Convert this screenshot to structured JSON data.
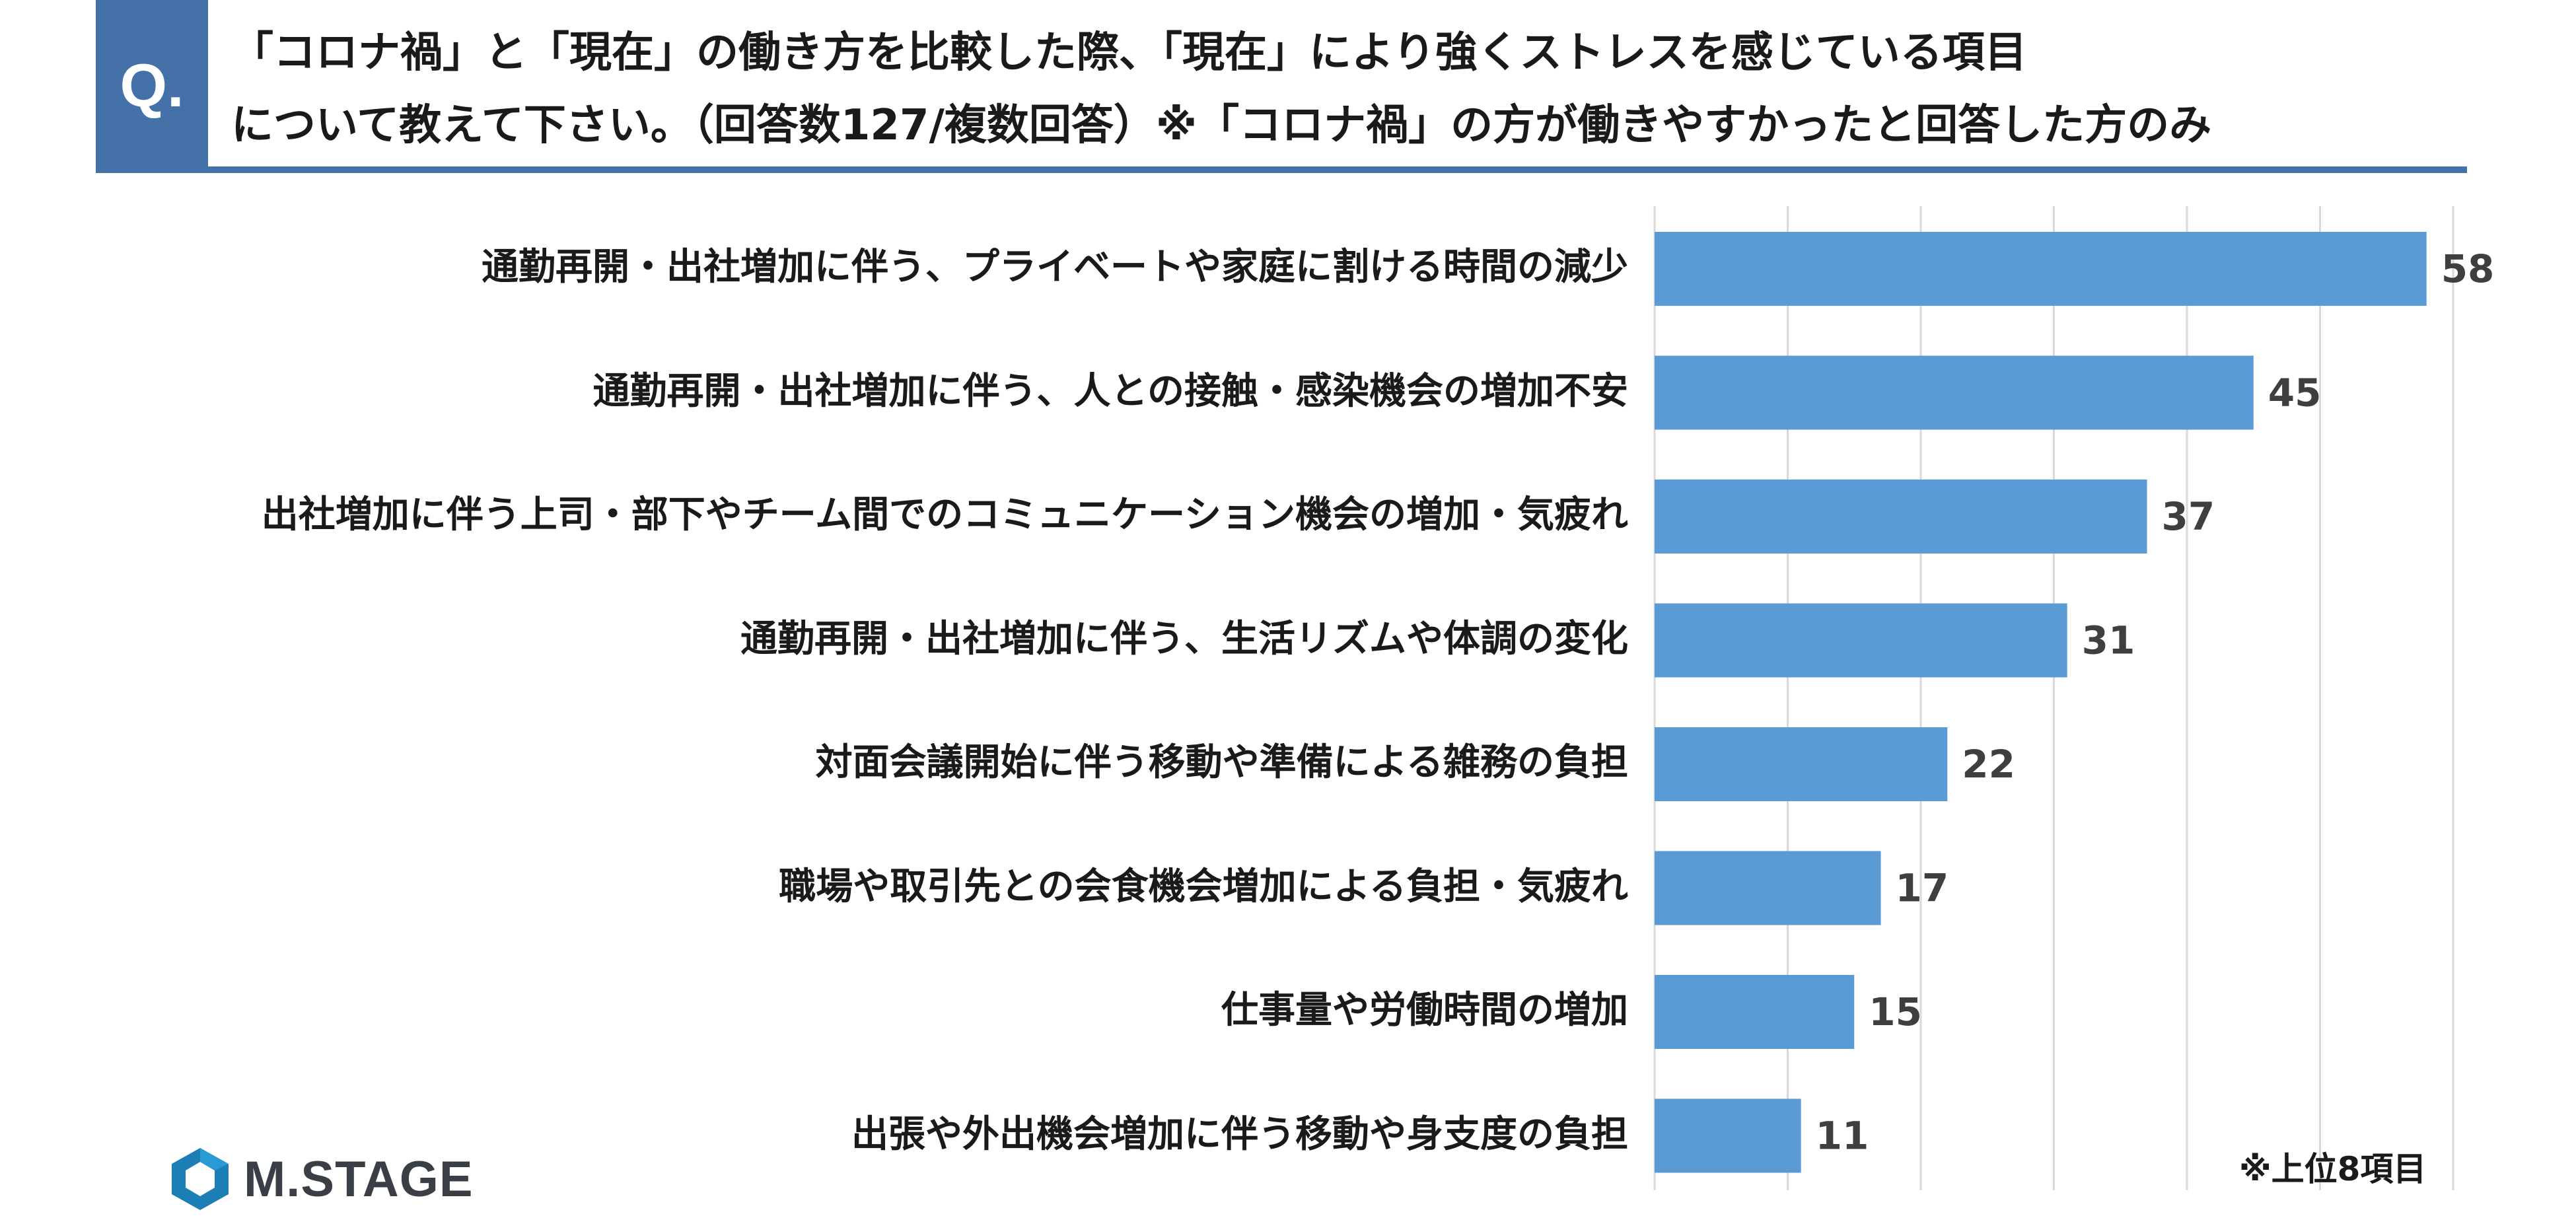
{
  "header": {
    "badge": "Q.",
    "question_line1": "「コロナ禍」と「現在」の働き方を比較した際、「現在」により強くストレスを感じている項目",
    "question_line2": "について教えて下さい。（回答数127/複数回答）※「コロナ禍」の方が働きやすかったと回答した方のみ"
  },
  "chart_data": {
    "type": "bar",
    "orientation": "horizontal",
    "categories": [
      "通勤再開・出社増加に伴う、プライベートや家庭に割ける時間の減少",
      "通勤再開・出社増加に伴う、人との接触・感染機会の増加不安",
      "出社増加に伴う上司・部下やチーム間でのコミュニケーション機会の増加・気疲れ",
      "通勤再開・出社増加に伴う、生活リズムや体調の変化",
      "対面会議開始に伴う移動や準備による雑務の負担",
      "職場や取引先との会食機会増加による負担・気疲れ",
      "仕事量や労働時間の増加",
      "出張や外出機会増加に伴う移動や身支度の負担"
    ],
    "values": [
      58,
      45,
      37,
      31,
      22,
      17,
      15,
      11
    ],
    "xlim": [
      0,
      60
    ],
    "grid": true,
    "bar_color": "#5b9bd5",
    "gridline_color": "#d9d9d9"
  },
  "footnote": "※上位8項目",
  "brand": {
    "logo_text": "M.STAGE",
    "logo_color": "#1b7fb5"
  }
}
